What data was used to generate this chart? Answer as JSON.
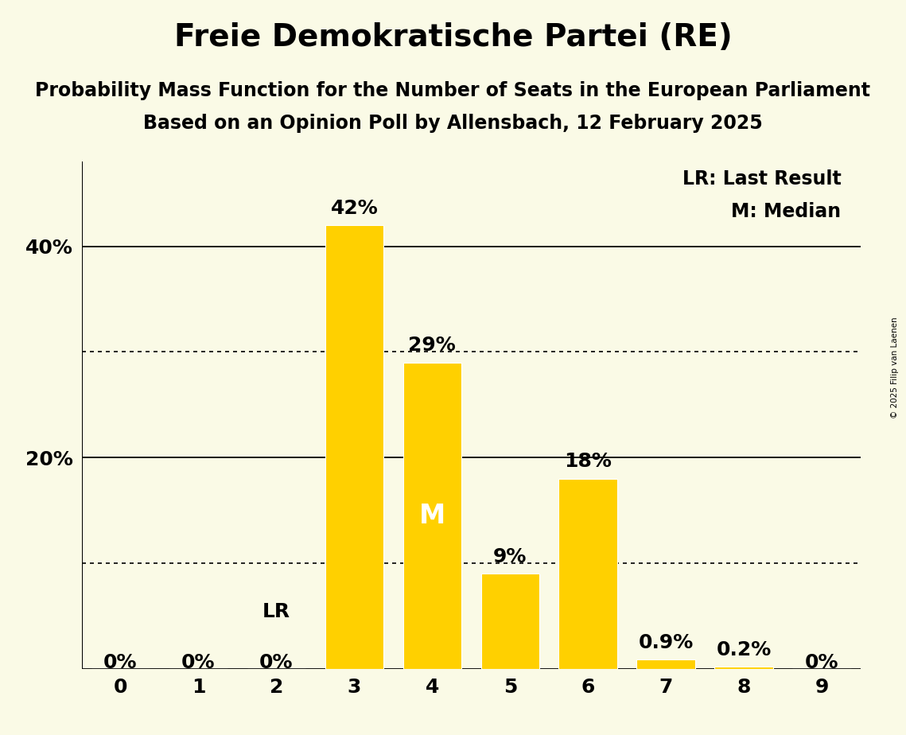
{
  "title": "Freie Demokratische Partei (RE)",
  "subtitle1": "Probability Mass Function for the Number of Seats in the European Parliament",
  "subtitle2": "Based on an Opinion Poll by Allensbach, 12 February 2025",
  "copyright": "© 2025 Filip van Laenen",
  "seats": [
    0,
    1,
    2,
    3,
    4,
    5,
    6,
    7,
    8,
    9
  ],
  "probabilities": [
    0.0,
    0.0,
    0.0,
    42.0,
    29.0,
    9.0,
    18.0,
    0.9,
    0.2,
    0.0
  ],
  "bar_color": "#FFD000",
  "background_color": "#FAFAE6",
  "text_color": "#000000",
  "last_result_seat": 2,
  "median_seat": 4,
  "solid_yticks": [
    0,
    20,
    40
  ],
  "dotted_yticks": [
    10,
    30
  ],
  "ylim": [
    0,
    48
  ],
  "bar_labels": [
    "0%",
    "0%",
    "0%",
    "42%",
    "29%",
    "9%",
    "18%",
    "0.9%",
    "0.2%",
    "0%"
  ],
  "legend_lr": "LR: Last Result",
  "legend_m": "M: Median",
  "title_fontsize": 28,
  "subtitle_fontsize": 17,
  "bar_label_fontsize": 18,
  "axis_tick_fontsize": 18,
  "legend_fontsize": 17,
  "median_label": "M",
  "lr_label": "LR",
  "ytick_labels": {
    "0": "",
    "20": "20%",
    "40": "40%"
  }
}
